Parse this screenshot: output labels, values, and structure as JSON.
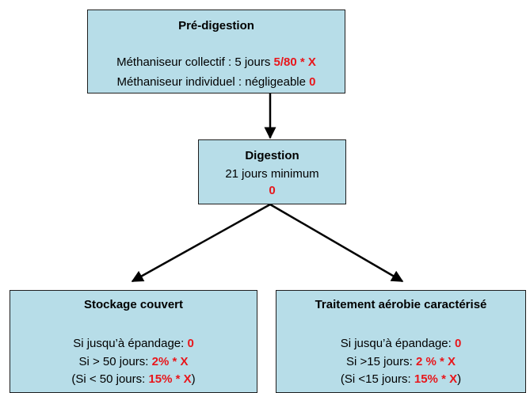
{
  "nodes": [
    {
      "title": "Pré-digestion",
      "lines": [
        [
          {
            "text": "Méthaniseur collectif : 5 jours "
          },
          {
            "text": "5/80 * X",
            "emphasis": true
          }
        ],
        [
          {
            "text": "Méthaniseur individuel : négligeable "
          },
          {
            "text": "0",
            "emphasis": true
          }
        ]
      ]
    },
    {
      "title": "Digestion",
      "lines": [
        [
          {
            "text": "21 jours minimum"
          }
        ],
        [
          {
            "text": "0",
            "emphasis": true
          }
        ]
      ]
    },
    {
      "title": "Stockage couvert",
      "lines": [
        [
          {
            "text": "Si jusqu’à épandage: "
          },
          {
            "text": "0",
            "emphasis": true
          }
        ],
        [
          {
            "text": "Si > 50 jours: "
          },
          {
            "text": "2% * X",
            "emphasis": true
          }
        ],
        [
          {
            "text": "(Si < 50 jours: "
          },
          {
            "text": "15% * X",
            "emphasis": true
          },
          {
            "text": ")"
          }
        ]
      ]
    },
    {
      "title": "Traitement aérobie caractérisé",
      "lines": [
        [
          {
            "text": "Si jusqu’à épandage: "
          },
          {
            "text": "0",
            "emphasis": true
          }
        ],
        [
          {
            "text": "Si >15 jours: "
          },
          {
            "text": "2 % * X",
            "emphasis": true
          }
        ],
        [
          {
            "text": "(Si <15 jours: "
          },
          {
            "text": "15% * X",
            "emphasis": true
          },
          {
            "text": ")"
          }
        ]
      ]
    }
  ]
}
